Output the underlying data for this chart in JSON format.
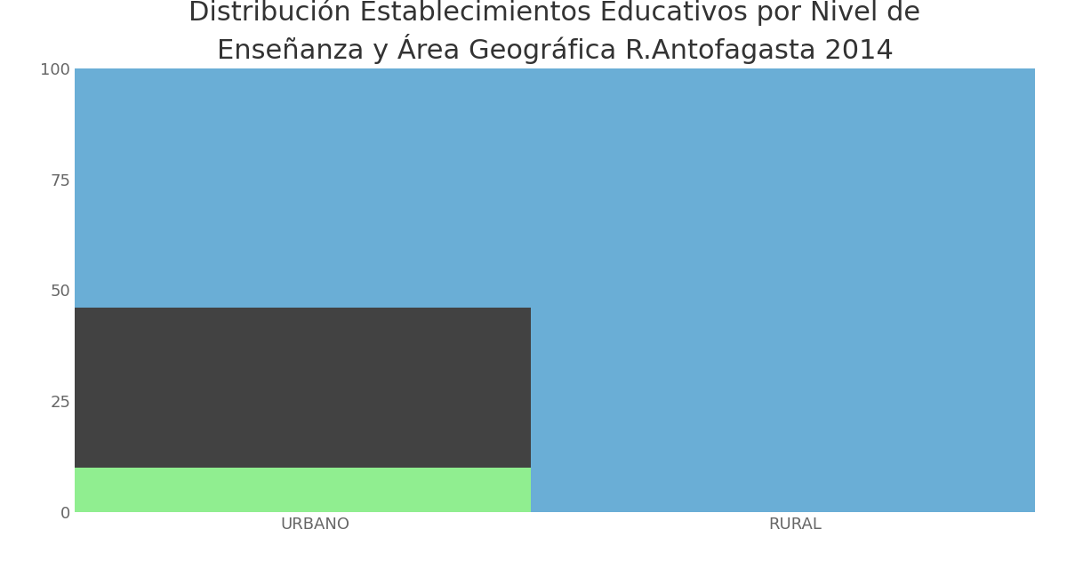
{
  "title": "Distribución Establecimientos Educativos por Nivel de\nEnseñanza y Área Geográfica R.Antofagasta 2014",
  "categories": [
    "URBANO",
    "RURAL"
  ],
  "segments": {
    "green": [
      10,
      0
    ],
    "gray": [
      36,
      0
    ],
    "blue": [
      54,
      100
    ]
  },
  "colors": {
    "green": "#90EE90",
    "gray": "#424242",
    "blue": "#6aaed6"
  },
  "ylim": [
    0,
    100
  ],
  "yticks": [
    0,
    25,
    50,
    75,
    100
  ],
  "bar_width": 0.55,
  "x_positions": [
    0.25,
    0.75
  ],
  "xlim": [
    0.0,
    1.0
  ],
  "background_color": "#ffffff",
  "grid_color": "#d0d0d0",
  "title_fontsize": 22,
  "tick_fontsize": 13,
  "title_color": "#333333",
  "tick_color": "#666666"
}
